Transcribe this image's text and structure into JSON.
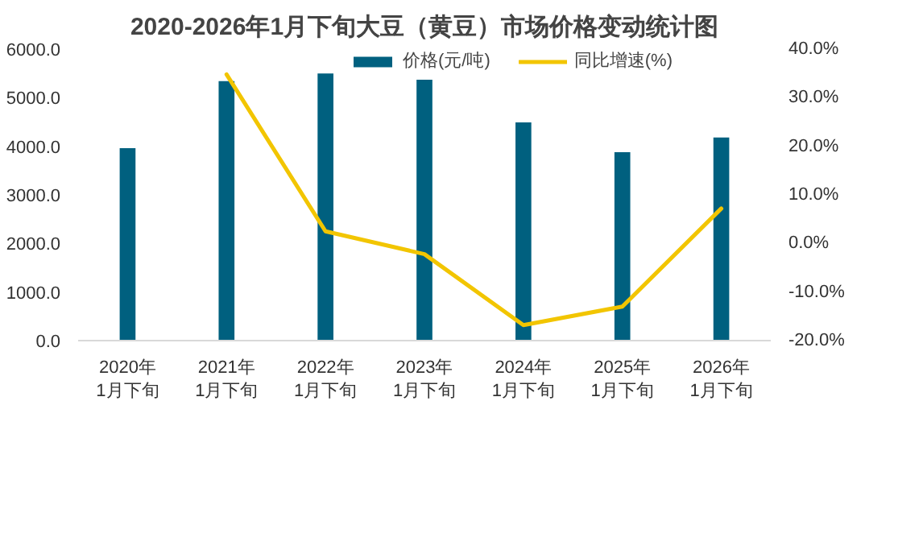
{
  "chart_data": {
    "type": "bar",
    "title": "2020-2026年1月下旬大豆（黄豆）市场价格变动统计图",
    "categories": [
      "2020年\n1月下旬",
      "2021年\n1月下旬",
      "2022年\n1月下旬",
      "2023年\n1月下旬",
      "2024年\n1月下旬",
      "2025年\n1月下旬",
      "2026年\n1月下旬"
    ],
    "series": [
      {
        "name": "价格(元/吨)",
        "type": "bar",
        "color": "#00607f",
        "values": [
          3960,
          5340,
          5500,
          5370,
          4490,
          3880,
          4180
        ]
      },
      {
        "name": "同比增速(%)",
        "type": "line",
        "axis": "y2",
        "color": "#f2c500",
        "values": [
          null,
          34.8,
          2.5,
          -2.2,
          -16.8,
          -13.0,
          7.2
        ]
      }
    ],
    "ylim": [
      0,
      6000
    ],
    "yticks": [
      {
        "value": 0,
        "label": "0.0"
      },
      {
        "value": 1000,
        "label": "1000.0"
      },
      {
        "value": 2000,
        "label": "2000.0"
      },
      {
        "value": 3000,
        "label": "3000.0"
      },
      {
        "value": 4000,
        "label": "4000.0"
      },
      {
        "value": 5000,
        "label": "5000.0"
      },
      {
        "value": 6000,
        "label": "6000.0"
      }
    ],
    "y2lim": [
      -20,
      40
    ],
    "y2ticks": [
      {
        "value": -20,
        "label": "-20.0%"
      },
      {
        "value": -10,
        "label": "-10.0%"
      },
      {
        "value": 0,
        "label": "0.0%"
      },
      {
        "value": 10,
        "label": "10.0%"
      },
      {
        "value": 20,
        "label": "20.0%"
      },
      {
        "value": 30,
        "label": "30.0%"
      },
      {
        "value": 40,
        "label": "40.0%"
      }
    ],
    "legend": "top",
    "grid": false
  }
}
